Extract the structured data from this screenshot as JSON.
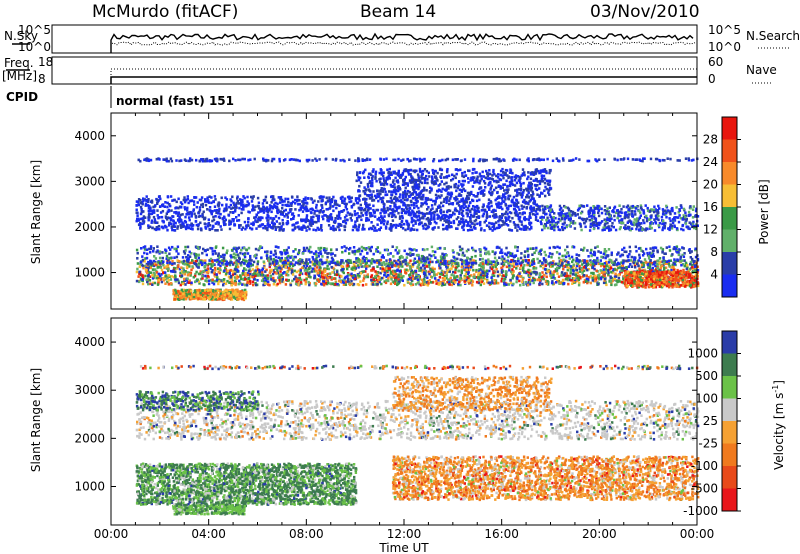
{
  "header": {
    "station": "McMurdo (fitACF)",
    "beam": "Beam 14",
    "date": "03/Nov/2010"
  },
  "strip_panels": {
    "nsky_label": "N.Sky",
    "nsearch_label": "N.Search",
    "nsky_ticks": [
      "10^5",
      "10^0"
    ],
    "nsearch_ticks": [
      "10^5",
      "10^0"
    ],
    "freq_label_line1": "Freq.",
    "freq_label_line2": "[MHz]",
    "freq_ticks": [
      "18",
      "8"
    ],
    "nave_label": "Nave",
    "nave_ticks": [
      "60",
      "0"
    ],
    "cpid_label": "CPID",
    "cpid_value": "normal (fast) 151"
  },
  "colorbars": {
    "power": {
      "label": "Power [dB]",
      "ticks": [
        "28",
        "24",
        "20",
        "16",
        "12",
        "8",
        "4"
      ],
      "colors": [
        "#e8160e",
        "#f0521a",
        "#f88a2a",
        "#f7be35",
        "#3a9a46",
        "#61b06a",
        "#2a3ea8",
        "#1a2df0"
      ]
    },
    "velocity": {
      "label": "Velocity [m s",
      "label_sup": "-1",
      "label_end": "]",
      "ticks": [
        "1000",
        "500",
        "100",
        "25",
        "-25",
        "-100",
        "-500",
        "-1000"
      ],
      "colors": [
        "#2a3ca8",
        "#3d7c4f",
        "#6bc248",
        "#c9c9c9",
        "#f5a133",
        "#f07a1e",
        "#e84a1a",
        "#e8161b"
      ]
    }
  },
  "chart_data": [
    {
      "type": "heatmap",
      "title": "Power",
      "ylabel": "Slant Range [km]",
      "yticks": [
        1000,
        2000,
        3000,
        4000
      ],
      "ylim": [
        200,
        4500
      ],
      "xlim": [
        "00:00",
        "24:00"
      ],
      "approx_regions": [
        {
          "t_start": 1.0,
          "t_end": 24.0,
          "range_km": [
            800,
            1200
          ],
          "power_db": 16
        },
        {
          "t_start": 1.0,
          "t_end": 17.0,
          "range_km": [
            2000,
            2600
          ],
          "power_db": 8
        },
        {
          "t_start": 2.5,
          "t_end": 5.5,
          "range_km": [
            450,
            650
          ],
          "power_db": 20
        }
      ]
    },
    {
      "type": "heatmap",
      "title": "Velocity",
      "ylabel": "Slant Range [km]",
      "xlabel": "Time UT",
      "xticks": [
        "00:00",
        "04:00",
        "08:00",
        "12:00",
        "16:00",
        "20:00",
        "00:00"
      ],
      "yticks": [
        1000,
        2000,
        3000,
        4000
      ],
      "ylim": [
        200,
        4500
      ],
      "xlim": [
        "00:00",
        "24:00"
      ],
      "approx_regions": [
        {
          "t_start": 1.0,
          "t_end": 10.0,
          "range_km": [
            700,
            1500
          ],
          "velocity_ms": 300
        },
        {
          "t_start": 11.5,
          "t_end": 24.0,
          "range_km": [
            800,
            1600
          ],
          "velocity_ms": -100
        },
        {
          "t_start": 1.0,
          "t_end": 24.0,
          "range_km": [
            2000,
            2800
          ],
          "velocity_ms": 0
        }
      ]
    }
  ]
}
